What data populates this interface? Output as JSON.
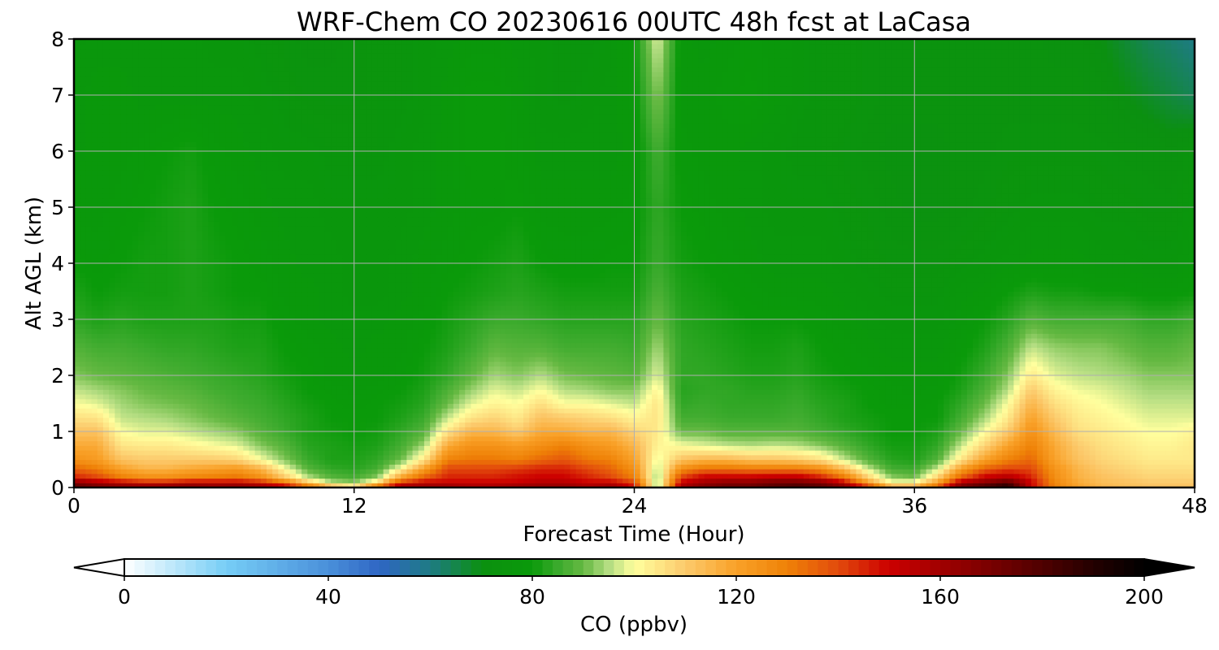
{
  "chart_data": {
    "type": "heatmap",
    "title": "WRF-Chem CO  20230616 00UTC 48h fcst at LaCasa",
    "xlabel": "Forecast Time (Hour)",
    "ylabel": "Alt AGL (km)",
    "xlim": [
      0,
      48
    ],
    "ylim": [
      0,
      8
    ],
    "xticks": [
      "0",
      "12",
      "24",
      "36",
      "48"
    ],
    "yticks": [
      "0",
      "1",
      "2",
      "3",
      "4",
      "5",
      "6",
      "7",
      "8"
    ],
    "grid": true,
    "x": [
      0,
      1,
      2,
      3,
      4,
      5,
      6,
      7,
      8,
      9,
      10,
      11,
      12,
      13,
      14,
      15,
      16,
      17,
      18,
      19,
      20,
      21,
      22,
      23,
      24,
      25,
      26,
      27,
      28,
      29,
      30,
      31,
      32,
      33,
      34,
      35,
      36,
      37,
      38,
      39,
      40,
      41,
      42,
      43,
      44,
      45,
      46,
      47,
      48
    ],
    "y": [
      0,
      0.1,
      0.2,
      0.35,
      0.5,
      0.75,
      1.0,
      1.25,
      1.5,
      1.75,
      2.0,
      2.5,
      3.0,
      3.5,
      4.0,
      5.0,
      6.0,
      7.0,
      8.0
    ],
    "values": [
      [
        180,
        175,
        170,
        168,
        170,
        172,
        168,
        170,
        165,
        160,
        140,
        120,
        110,
        140,
        165,
        165,
        165,
        160,
        160,
        165,
        165,
        165,
        160,
        165,
        150,
        90,
        160,
        170,
        175,
        175,
        180,
        185,
        180,
        170,
        150,
        120,
        120,
        140,
        175,
        185,
        195,
        150,
        130,
        120,
        115,
        113,
        112,
        112,
        112
      ],
      [
        165,
        155,
        150,
        145,
        145,
        150,
        150,
        150,
        145,
        130,
        110,
        95,
        92,
        105,
        140,
        150,
        150,
        150,
        150,
        150,
        155,
        155,
        150,
        150,
        140,
        92,
        150,
        160,
        165,
        165,
        170,
        170,
        165,
        150,
        120,
        100,
        100,
        120,
        155,
        165,
        175,
        150,
        128,
        118,
        113,
        112,
        110,
        110,
        110
      ],
      [
        145,
        140,
        130,
        125,
        125,
        128,
        130,
        132,
        125,
        110,
        95,
        88,
        86,
        92,
        118,
        135,
        145,
        145,
        145,
        148,
        150,
        150,
        145,
        140,
        130,
        92,
        140,
        150,
        150,
        150,
        152,
        152,
        145,
        130,
        108,
        92,
        90,
        108,
        135,
        150,
        155,
        145,
        126,
        116,
        112,
        110,
        108,
        108,
        108
      ],
      [
        135,
        130,
        120,
        115,
        115,
        118,
        120,
        122,
        115,
        100,
        88,
        84,
        83,
        86,
        100,
        120,
        140,
        140,
        140,
        142,
        145,
        145,
        140,
        135,
        125,
        95,
        125,
        132,
        132,
        130,
        130,
        130,
        125,
        112,
        96,
        86,
        85,
        96,
        120,
        135,
        140,
        140,
        124,
        115,
        110,
        108,
        106,
        106,
        106
      ],
      [
        125,
        122,
        112,
        110,
        110,
        110,
        110,
        108,
        100,
        92,
        85,
        82,
        82,
        84,
        90,
        105,
        130,
        132,
        132,
        130,
        135,
        138,
        132,
        130,
        120,
        98,
        112,
        115,
        115,
        112,
        112,
        110,
        106,
        96,
        88,
        83,
        82,
        88,
        105,
        120,
        130,
        135,
        120,
        112,
        108,
        106,
        104,
        104,
        104
      ],
      [
        118,
        118,
        105,
        104,
        104,
        102,
        100,
        98,
        92,
        88,
        83,
        82,
        81,
        82,
        86,
        94,
        118,
        125,
        125,
        122,
        126,
        130,
        125,
        122,
        115,
        102,
        100,
        98,
        96,
        95,
        96,
        95,
        92,
        88,
        84,
        81,
        81,
        84,
        96,
        108,
        120,
        130,
        118,
        110,
        106,
        104,
        102,
        102,
        104
      ],
      [
        112,
        112,
        100,
        98,
        98,
        96,
        94,
        92,
        88,
        85,
        82,
        81,
        80,
        81,
        84,
        88,
        105,
        115,
        115,
        110,
        118,
        118,
        115,
        115,
        108,
        104,
        90,
        90,
        88,
        88,
        88,
        88,
        86,
        84,
        82,
        80,
        80,
        82,
        90,
        100,
        110,
        125,
        114,
        106,
        104,
        102,
        100,
        100,
        102
      ],
      [
        106,
        105,
        96,
        95,
        94,
        92,
        90,
        88,
        86,
        84,
        82,
        80,
        80,
        80,
        82,
        85,
        96,
        105,
        108,
        104,
        112,
        110,
        108,
        106,
        102,
        105,
        86,
        86,
        85,
        85,
        85,
        86,
        84,
        82,
        81,
        80,
        80,
        80,
        86,
        94,
        104,
        120,
        110,
        104,
        102,
        100,
        98,
        98,
        98
      ],
      [
        100,
        98,
        94,
        92,
        91,
        90,
        88,
        86,
        85,
        83,
        81,
        80,
        79,
        80,
        81,
        83,
        90,
        98,
        102,
        100,
        106,
        100,
        100,
        98,
        96,
        105,
        84,
        85,
        84,
        84,
        84,
        85,
        83,
        82,
        80,
        79,
        79,
        80,
        84,
        90,
        100,
        115,
        106,
        102,
        100,
        98,
        96,
        96,
        96
      ],
      [
        96,
        94,
        92,
        90,
        89,
        88,
        86,
        85,
        84,
        82,
        80,
        79,
        78,
        79,
        80,
        82,
        87,
        93,
        98,
        96,
        100,
        95,
        94,
        92,
        92,
        102,
        83,
        84,
        84,
        83,
        83,
        84,
        82,
        81,
        80,
        79,
        78,
        79,
        82,
        87,
        95,
        110,
        102,
        99,
        98,
        96,
        94,
        94,
        94
      ],
      [
        92,
        90,
        89,
        88,
        87,
        86,
        85,
        84,
        83,
        81,
        80,
        78,
        78,
        78,
        79,
        81,
        84,
        89,
        94,
        92,
        95,
        91,
        90,
        89,
        88,
        98,
        84,
        84,
        83,
        82,
        82,
        83,
        81,
        80,
        79,
        78,
        78,
        78,
        81,
        85,
        92,
        104,
        98,
        96,
        95,
        94,
        92,
        92,
        92
      ],
      [
        88,
        86,
        86,
        85,
        84,
        84,
        83,
        82,
        82,
        80,
        79,
        78,
        77,
        78,
        78,
        80,
        82,
        85,
        89,
        88,
        88,
        86,
        86,
        86,
        85,
        94,
        84,
        83,
        82,
        81,
        81,
        82,
        80,
        79,
        78,
        77,
        77,
        77,
        79,
        82,
        87,
        96,
        93,
        92,
        92,
        90,
        88,
        88,
        90
      ],
      [
        84,
        82,
        83,
        82,
        82,
        82,
        82,
        81,
        81,
        79,
        78,
        77,
        77,
        77,
        78,
        79,
        81,
        83,
        85,
        85,
        84,
        83,
        83,
        83,
        83,
        90,
        83,
        82,
        81,
        80,
        80,
        80,
        79,
        78,
        77,
        76,
        76,
        76,
        78,
        80,
        83,
        88,
        86,
        86,
        86,
        86,
        84,
        84,
        86
      ],
      [
        82,
        80,
        81,
        81,
        81,
        82,
        81,
        80,
        80,
        78,
        78,
        77,
        76,
        76,
        77,
        78,
        80,
        81,
        82,
        83,
        82,
        81,
        81,
        81,
        81,
        87,
        82,
        81,
        80,
        79,
        78,
        78,
        78,
        77,
        76,
        75,
        75,
        75,
        77,
        78,
        80,
        82,
        81,
        81,
        80,
        80,
        79,
        79,
        80
      ],
      [
        80,
        79,
        80,
        81,
        81,
        82,
        81,
        80,
        79,
        78,
        77,
        77,
        76,
        76,
        77,
        78,
        79,
        80,
        81,
        82,
        80,
        79,
        79,
        80,
        80,
        85,
        81,
        80,
        79,
        78,
        77,
        77,
        77,
        76,
        75,
        74,
        74,
        74,
        75,
        76,
        77,
        78,
        78,
        78,
        77,
        77,
        76,
        76,
        78
      ],
      [
        78,
        78,
        79,
        80,
        81,
        82,
        80,
        79,
        78,
        77,
        77,
        76,
        76,
        76,
        76,
        77,
        78,
        79,
        79,
        80,
        78,
        78,
        78,
        78,
        79,
        84,
        80,
        79,
        78,
        77,
        76,
        76,
        76,
        75,
        74,
        73,
        72,
        72,
        73,
        74,
        75,
        76,
        76,
        76,
        75,
        75,
        74,
        74,
        76
      ],
      [
        77,
        78,
        78,
        79,
        80,
        81,
        79,
        78,
        77,
        76,
        76,
        75,
        75,
        75,
        76,
        77,
        78,
        80,
        80,
        79,
        77,
        77,
        77,
        77,
        78,
        86,
        79,
        78,
        78,
        77,
        76,
        75,
        75,
        74,
        73,
        72,
        72,
        72,
        73,
        73,
        74,
        74,
        74,
        74,
        74,
        73,
        73,
        72,
        74
      ],
      [
        77,
        78,
        78,
        77,
        77,
        77,
        77,
        77,
        76,
        75,
        74,
        74,
        74,
        75,
        75,
        76,
        78,
        80,
        80,
        78,
        76,
        75,
        76,
        77,
        79,
        92,
        78,
        78,
        79,
        80,
        78,
        76,
        75,
        75,
        74,
        73,
        73,
        73,
        73,
        73,
        73,
        73,
        73,
        73,
        72,
        70,
        68,
        66,
        64
      ],
      [
        76,
        77,
        77,
        77,
        77,
        77,
        76,
        76,
        75,
        74,
        73,
        73,
        74,
        75,
        75,
        76,
        77,
        78,
        78,
        77,
        76,
        75,
        75,
        76,
        80,
        98,
        78,
        77,
        78,
        79,
        78,
        76,
        75,
        75,
        74,
        73,
        73,
        73,
        73,
        73,
        73,
        73,
        72,
        72,
        70,
        67,
        64,
        62,
        60
      ]
    ],
    "colorbar": {
      "label": "CO  (ppbv)",
      "min": 0,
      "max": 200,
      "ticks": [
        "0",
        "40",
        "80",
        "120",
        "160",
        "200"
      ],
      "extend": "both",
      "colors": [
        [
          0,
          "#ffffff"
        ],
        [
          20,
          "#76cdf6"
        ],
        [
          40,
          "#4a90da"
        ],
        [
          50,
          "#2f66c4"
        ],
        [
          60,
          "#1e7b84"
        ],
        [
          70,
          "#0b9010"
        ],
        [
          80,
          "#0a9a0a"
        ],
        [
          85,
          "#3aaa2c"
        ],
        [
          90,
          "#66b943"
        ],
        [
          95,
          "#b4dd82"
        ],
        [
          100,
          "#ffff9e"
        ],
        [
          110,
          "#fcca6c"
        ],
        [
          120,
          "#f9a128"
        ],
        [
          130,
          "#ef8207"
        ],
        [
          140,
          "#e24a0c"
        ],
        [
          150,
          "#cc0000"
        ],
        [
          160,
          "#a10000"
        ],
        [
          170,
          "#780000"
        ],
        [
          180,
          "#4f0000"
        ],
        [
          190,
          "#240000"
        ],
        [
          200,
          "#000000"
        ]
      ]
    }
  }
}
